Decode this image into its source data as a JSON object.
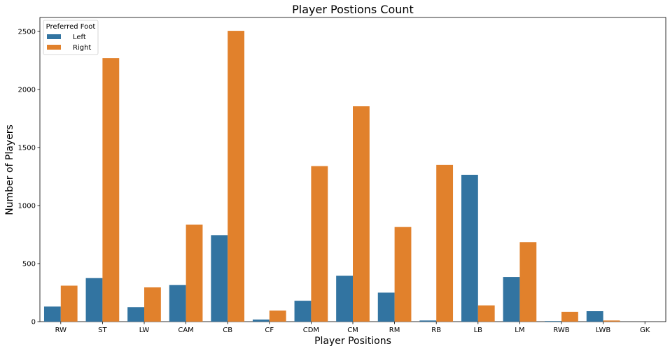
{
  "chart_data": {
    "type": "bar",
    "title": "Player Postions Count",
    "xlabel": "Player Positions",
    "ylabel": "Number of Players",
    "categories": [
      "RW",
      "ST",
      "LW",
      "CAM",
      "CB",
      "CF",
      "CDM",
      "CM",
      "RM",
      "RB",
      "LB",
      "LM",
      "RWB",
      "LWB",
      "GK"
    ],
    "series": [
      {
        "name": "Left",
        "color": "#3274a1",
        "values": [
          130,
          375,
          125,
          315,
          745,
          18,
          180,
          395,
          250,
          10,
          1265,
          385,
          5,
          90,
          0
        ]
      },
      {
        "name": "Right",
        "color": "#e1812c",
        "values": [
          310,
          2270,
          295,
          835,
          2505,
          95,
          1340,
          1855,
          815,
          1350,
          140,
          685,
          85,
          10,
          0
        ]
      }
    ],
    "ylim": [
      0,
      2620
    ],
    "yticks": [
      0,
      500,
      1000,
      1500,
      2000,
      2500
    ],
    "legend": {
      "title": "Preferred Foot",
      "position": "top-left"
    },
    "grid": false
  }
}
